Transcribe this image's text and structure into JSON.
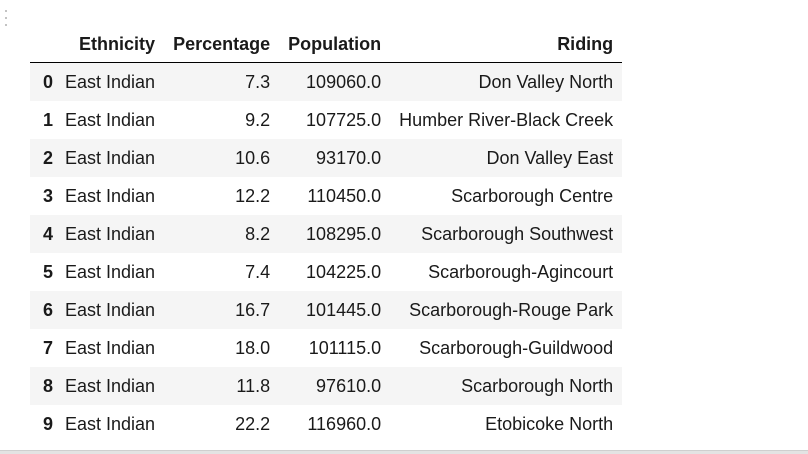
{
  "table": {
    "columns": [
      "Ethnicity",
      "Percentage",
      "Population",
      "Riding"
    ],
    "rows": [
      {
        "index": "0",
        "ethnicity": "East Indian",
        "percentage": "7.3",
        "population": "109060.0",
        "riding": "Don Valley North"
      },
      {
        "index": "1",
        "ethnicity": "East Indian",
        "percentage": "9.2",
        "population": "107725.0",
        "riding": "Humber River-Black Creek"
      },
      {
        "index": "2",
        "ethnicity": "East Indian",
        "percentage": "10.6",
        "population": "93170.0",
        "riding": "Don Valley East"
      },
      {
        "index": "3",
        "ethnicity": "East Indian",
        "percentage": "12.2",
        "population": "110450.0",
        "riding": "Scarborough Centre"
      },
      {
        "index": "4",
        "ethnicity": "East Indian",
        "percentage": "8.2",
        "population": "108295.0",
        "riding": "Scarborough Southwest"
      },
      {
        "index": "5",
        "ethnicity": "East Indian",
        "percentage": "7.4",
        "population": "104225.0",
        "riding": "Scarborough-Agincourt"
      },
      {
        "index": "6",
        "ethnicity": "East Indian",
        "percentage": "16.7",
        "population": "101445.0",
        "riding": "Scarborough-Rouge Park"
      },
      {
        "index": "7",
        "ethnicity": "East Indian",
        "percentage": "18.0",
        "population": "101115.0",
        "riding": "Scarborough-Guildwood"
      },
      {
        "index": "8",
        "ethnicity": "East Indian",
        "percentage": "11.8",
        "population": "97610.0",
        "riding": "Scarborough North"
      },
      {
        "index": "9",
        "ethnicity": "East Indian",
        "percentage": "22.2",
        "population": "116960.0",
        "riding": "Etobicoke North"
      }
    ]
  }
}
